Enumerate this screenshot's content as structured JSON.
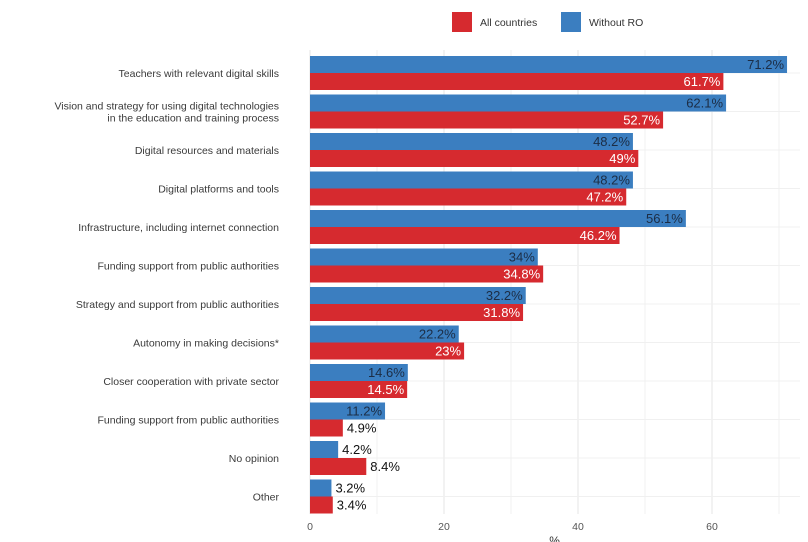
{
  "chart_data": {
    "type": "bar",
    "orientation": "horizontal",
    "categories": [
      "Teachers with relevant digital skills",
      "Vision and strategy for using digital technologies\nin the education and training process",
      "Digital resources and materials",
      "Digital platforms and tools",
      "Infrastructure, including internet connection",
      "Funding support from public authorities",
      "Strategy and support from public authorities",
      "Autonomy in making decisions*",
      "Closer cooperation with private sector",
      "Funding support from public authorities",
      "No opinion",
      "Other"
    ],
    "series": [
      {
        "name": "All countries",
        "color": "#d62a2f",
        "values": [
          61.7,
          52.7,
          49,
          47.2,
          46.2,
          34.8,
          31.8,
          23,
          14.5,
          4.9,
          8.4,
          3.4
        ],
        "labels": [
          "61.7%",
          "52.7%",
          "49%",
          "47.2%",
          "46.2%",
          "34.8%",
          "31.8%",
          "23%",
          "14.5%",
          "4.9%",
          "8.4%",
          "3.4%"
        ]
      },
      {
        "name": "Without RO",
        "color": "#3b7ec0",
        "values": [
          71.2,
          62.1,
          48.2,
          48.2,
          56.1,
          34,
          32.2,
          22.2,
          14.6,
          11.2,
          4.2,
          3.2
        ],
        "labels": [
          "71.2%",
          "62.1%",
          "48.2%",
          "48.2%",
          "56.1%",
          "34%",
          "32.2%",
          "22.2%",
          "14.6%",
          "11.2%",
          "4.2%",
          "3.2%"
        ]
      }
    ],
    "xticks": [
      "0",
      "20",
      "40",
      "60"
    ],
    "xtick_values": [
      0,
      20,
      40,
      60
    ],
    "xlim": [
      0,
      73
    ],
    "xlabel": "%",
    "ylabel": "",
    "title": "",
    "grid": true,
    "legend_position": "top-right"
  }
}
